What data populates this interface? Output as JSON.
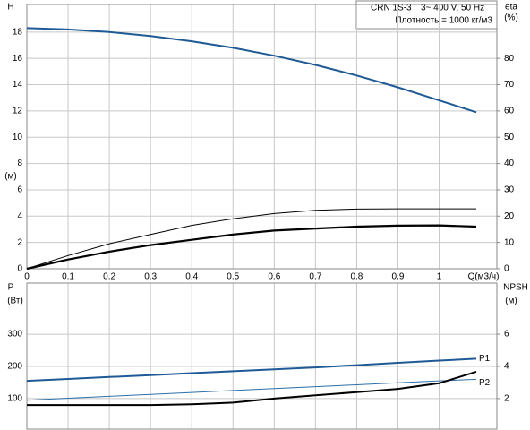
{
  "chart_data": [
    {
      "type": "line",
      "annotations": [
        "CRN 1S-3",
        "3~ 400 V, 50 Hz",
        "Плотность = 1000 кг/м3"
      ],
      "ylabel": "H",
      "yunit": "(м)",
      "y2label": "eta",
      "y2unit": "(%)",
      "xlabel": "Q(м3/ч)",
      "x": [
        0,
        0.1,
        0.2,
        0.3,
        0.4,
        0.5,
        0.6,
        0.7,
        0.8,
        0.9,
        1.0,
        1.09
      ],
      "xlim": [
        0,
        1.14
      ],
      "xticks": [
        0,
        0.1,
        0.2,
        0.3,
        0.4,
        0.5,
        0.6,
        0.7,
        0.8,
        0.9,
        1
      ],
      "ylim": [
        0,
        20.1
      ],
      "yticks": [
        0,
        2,
        4,
        6,
        8,
        10,
        12,
        14,
        16,
        18
      ],
      "y2lim": [
        0,
        100.5
      ],
      "y2ticks": [
        0,
        10,
        20,
        30,
        40,
        50,
        60,
        70,
        80
      ],
      "grid": true,
      "series": [
        {
          "name": "H",
          "color": "#1f5a96",
          "width": 2,
          "values": [
            18.3,
            18.2,
            18.0,
            17.7,
            17.3,
            16.8,
            16.2,
            15.5,
            14.7,
            13.8,
            12.8,
            11.9
          ]
        },
        {
          "color": "#000000",
          "width": 1,
          "axis": "y2",
          "values": [
            0,
            5,
            9.5,
            13,
            16.5,
            19,
            21,
            22.2,
            22.7,
            22.8,
            22.8,
            22.8
          ]
        },
        {
          "color": "#000000",
          "width": 2.2,
          "axis": "y2",
          "values": [
            0,
            3.5,
            6.5,
            9,
            11,
            13,
            14.5,
            15.3,
            16,
            16.4,
            16.5,
            16
          ]
        }
      ]
    },
    {
      "type": "line",
      "ylabel": "P",
      "yunit": "(Вт)",
      "y2label": "NPSH",
      "y2unit": "(м)",
      "x": [
        0,
        0.1,
        0.2,
        0.3,
        0.4,
        0.5,
        0.6,
        0.7,
        0.8,
        0.9,
        1.0,
        1.09
      ],
      "xlim": [
        0,
        1.14
      ],
      "ylim": [
        5,
        459
      ],
      "yticks": [
        100,
        200,
        300
      ],
      "y2lim": [
        0.1,
        9.18
      ],
      "y2ticks": [
        2,
        4,
        6
      ],
      "grid": true,
      "series": [
        {
          "name": "P1",
          "color": "#1f5a96",
          "width": 2,
          "values": [
            155,
            161,
            167,
            173,
            179,
            185,
            191,
            197,
            204,
            211,
            218,
            224
          ]
        },
        {
          "name": "P2",
          "color": "#2e6fa8",
          "width": 1,
          "values": [
            95,
            101,
            107,
            113,
            119,
            125,
            131,
            137,
            143,
            149,
            155,
            160
          ]
        },
        {
          "name": "NPSH",
          "color": "#000000",
          "width": 2,
          "axis": "y2",
          "values": [
            1.6,
            1.6,
            1.6,
            1.6,
            1.65,
            1.75,
            2.0,
            2.2,
            2.4,
            2.6,
            2.95,
            3.67
          ]
        }
      ]
    }
  ]
}
